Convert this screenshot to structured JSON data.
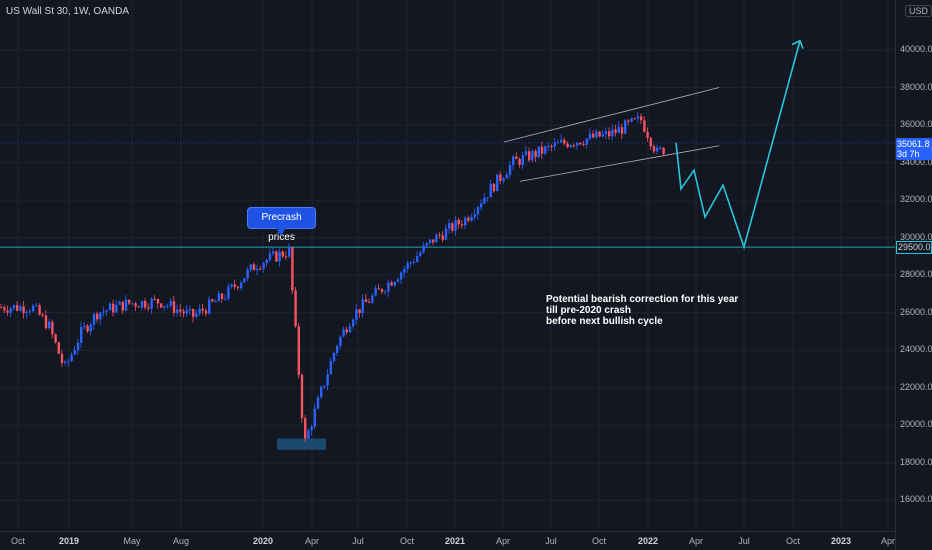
{
  "symbol": {
    "title": "US Wall St 30, 1W, OANDA"
  },
  "price_axis": {
    "currency": "USD",
    "ticks": [
      "40000.0",
      "38000.0",
      "36000.0",
      "34000.0",
      "32000.0",
      "30000.0",
      "28000.0",
      "26000.0",
      "24000.0",
      "22000.0",
      "20000.0",
      "18000.0",
      "16000.0"
    ],
    "last_price": "35061.8",
    "countdown": "3d 7h",
    "level_label": "29500.0"
  },
  "time_axis": {
    "ticks": [
      {
        "label": "Oct",
        "bold": false
      },
      {
        "label": "2019",
        "bold": true
      },
      {
        "label": "May",
        "bold": false
      },
      {
        "label": "Aug",
        "bold": false
      },
      {
        "label": "2020",
        "bold": true
      },
      {
        "label": "Apr",
        "bold": false
      },
      {
        "label": "Jul",
        "bold": false
      },
      {
        "label": "Oct",
        "bold": false
      },
      {
        "label": "2021",
        "bold": true
      },
      {
        "label": "Apr",
        "bold": false
      },
      {
        "label": "Jul",
        "bold": false
      },
      {
        "label": "Oct",
        "bold": false
      },
      {
        "label": "2022",
        "bold": true
      },
      {
        "label": "Apr",
        "bold": false
      },
      {
        "label": "Jul",
        "bold": false
      },
      {
        "label": "Oct",
        "bold": false
      },
      {
        "label": "2023",
        "bold": true
      },
      {
        "label": "Apr",
        "bold": false
      }
    ]
  },
  "annotations": {
    "callout": "Precrash prices",
    "note_lines": [
      "Potential bearish correction for this year",
      "till pre-2020 crash",
      "before next bullish cycle"
    ]
  },
  "colors": {
    "up": "#2962ff",
    "down": "#f7525f",
    "projection": "#26c6da",
    "channel": "#b2b5be",
    "background": "#131722"
  },
  "chart_data": {
    "type": "candlestick",
    "instrument": "US Wall St 30",
    "interval": "1W",
    "source": "OANDA",
    "ylim": [
      14800,
      41500
    ],
    "last_price": 35061.8,
    "horizontal_level": 29500,
    "weekly_closes_approx": [
      {
        "date": "2018-10",
        "close": 26300
      },
      {
        "date": "2018-11",
        "close": 25300
      },
      {
        "date": "2018-12",
        "close": 23000
      },
      {
        "date": "2019-01",
        "close": 24900
      },
      {
        "date": "2019-02",
        "close": 26000
      },
      {
        "date": "2019-04",
        "close": 26500
      },
      {
        "date": "2019-06",
        "close": 26600
      },
      {
        "date": "2019-08",
        "close": 25800
      },
      {
        "date": "2019-10",
        "close": 26900
      },
      {
        "date": "2019-12",
        "close": 28600
      },
      {
        "date": "2020-02",
        "close": 29300
      },
      {
        "date": "2020-03",
        "close": 19000
      },
      {
        "date": "2020-05",
        "close": 24300
      },
      {
        "date": "2020-06",
        "close": 25900
      },
      {
        "date": "2020-09",
        "close": 28200
      },
      {
        "date": "2020-11",
        "close": 29900
      },
      {
        "date": "2021-01",
        "close": 31000
      },
      {
        "date": "2021-04",
        "close": 34000
      },
      {
        "date": "2021-07",
        "close": 35000
      },
      {
        "date": "2021-10",
        "close": 35500
      },
      {
        "date": "2021-12",
        "close": 36300
      },
      {
        "date": "2022-01",
        "close": 34500
      },
      {
        "date": "2022-02",
        "close": 35061.8
      }
    ],
    "projection_path": [
      {
        "date": "2022-02",
        "value": 35061.8
      },
      {
        "date": "2022-03",
        "value": 32600
      },
      {
        "date": "2022-04",
        "value": 33600
      },
      {
        "date": "2022-05",
        "value": 31100
      },
      {
        "date": "2022-06",
        "value": 32800
      },
      {
        "date": "2022-07",
        "value": 29500
      },
      {
        "date": "2022-10",
        "value": 40500
      }
    ],
    "channel_upper": [
      {
        "date": "2021-04",
        "value": 35100
      },
      {
        "date": "2022-05",
        "value": 38000
      }
    ],
    "channel_lower": [
      {
        "date": "2021-05",
        "value": 33000
      },
      {
        "date": "2022-05",
        "value": 34900
      }
    ]
  }
}
